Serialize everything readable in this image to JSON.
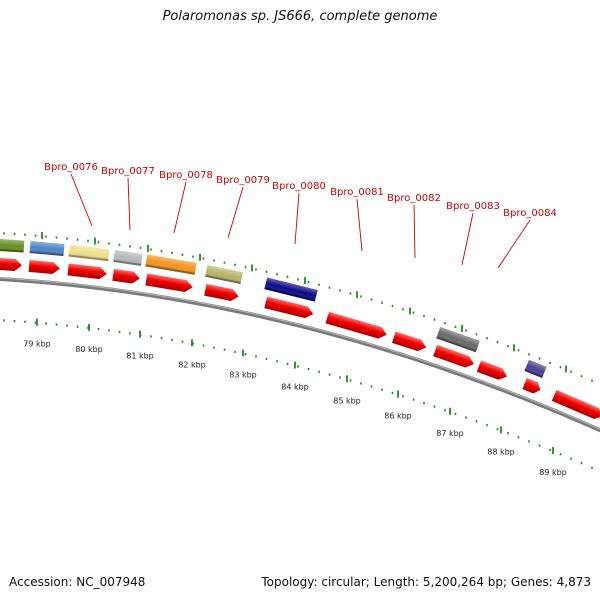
{
  "title": "Polaromonas sp. JS666, complete genome",
  "footer": {
    "accession": "Accession: NC_007948",
    "summary": "Topology: circular; Length: 5,200,264 bp; Genes: 4,873"
  },
  "colors": {
    "cds": "#ee0000",
    "label": "#cc0000",
    "tick": "#1f8a1f",
    "backbone": "#7a7a7a",
    "background": "#ffffff"
  },
  "scale_labels": [
    "79 kbp",
    "80 kbp",
    "81 kbp",
    "82 kbp",
    "83 kbp",
    "84 kbp",
    "85 kbp",
    "86 kbp",
    "87 kbp",
    "88 kbp",
    "89 kbp"
  ],
  "gene_labels": [
    "Bpro_0076",
    "Bpro_0077",
    "Bpro_0078",
    "Bpro_0079",
    "Bpro_0080",
    "Bpro_0081",
    "Bpro_0082",
    "Bpro_0083",
    "Bpro_0084"
  ],
  "feature_colors": [
    "#6b8e23",
    "#4f86c6",
    "#efe08a",
    "#b8b8b8",
    "#f7931e",
    "#b8b36a",
    "#0a0a8a",
    "#6a6a6a",
    "#4b3f8f"
  ]
}
